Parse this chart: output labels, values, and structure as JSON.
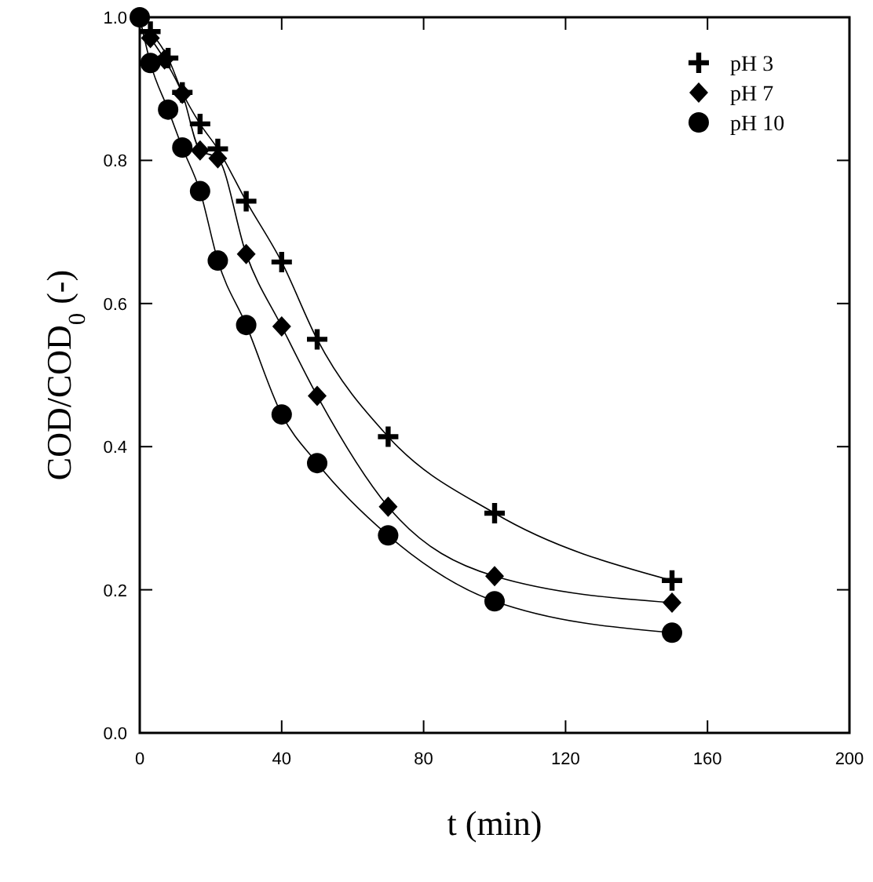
{
  "chart_data": {
    "type": "line",
    "xlabel": "t (min)",
    "ylabel": "COD/COD$_{0}$ (-)",
    "xlim": [
      0,
      200
    ],
    "xticks": [
      0,
      40,
      80,
      120,
      160,
      200
    ],
    "ylim": [
      0,
      1
    ],
    "yticks": [
      {
        "value": 0,
        "label": "0.0"
      },
      0.2,
      0.4,
      0.6,
      0.8,
      {
        "value": 1,
        "label": "1.0"
      }
    ],
    "grid": false,
    "legend": "top right",
    "line_style": "solid",
    "series": [
      {
        "name": "pH 3",
        "color": "#000000",
        "marker": "cross",
        "x": [
          3,
          8,
          12,
          17,
          22,
          30,
          40,
          50,
          70,
          100,
          150
        ],
        "values": [
          0.98,
          0.943,
          0.895,
          0.851,
          0.816,
          0.743,
          0.658,
          0.55,
          0.414,
          0.307,
          0.213
        ]
      },
      {
        "name": "pH 7",
        "color": "#000000",
        "marker": "diamond",
        "x": [
          3,
          7,
          12,
          17,
          22,
          30,
          40,
          50,
          70,
          100,
          150
        ],
        "values": [
          0.971,
          0.941,
          0.893,
          0.814,
          0.803,
          0.669,
          0.568,
          0.471,
          0.316,
          0.219,
          0.182
        ]
      },
      {
        "name": "pH 10",
        "color": "#000000",
        "marker": "circle",
        "x": [
          0,
          3,
          8,
          12,
          17,
          22,
          30,
          40,
          50,
          70,
          100,
          150
        ],
        "values": [
          1.0,
          0.936,
          0.871,
          0.818,
          0.757,
          0.66,
          0.57,
          0.445,
          0.377,
          0.276,
          0.184,
          0.14
        ]
      }
    ]
  }
}
